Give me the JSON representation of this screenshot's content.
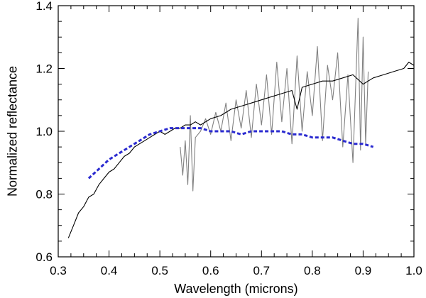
{
  "chart_data": {
    "type": "line",
    "title": "",
    "xlabel": "Wavelength (microns)",
    "ylabel": "Normalized reflectance",
    "xlim": [
      0.3,
      1.0
    ],
    "ylim": [
      0.6,
      1.4
    ],
    "x_ticks": [
      0.3,
      0.4,
      0.5,
      0.6,
      0.7,
      0.8,
      0.9,
      1.0
    ],
    "y_ticks": [
      0.6,
      0.8,
      1.0,
      1.2,
      1.4
    ],
    "x_tick_labels": [
      "0.3",
      "0.4",
      "0.5",
      "0.6",
      "0.7",
      "0.8",
      "0.9",
      "1.0"
    ],
    "y_tick_labels": [
      "0.6",
      "0.8",
      "1.0",
      "1.2",
      "1.4"
    ],
    "grid": false,
    "legend": "none",
    "series": [
      {
        "name": "gray spectrum",
        "style": "solid",
        "color": "#808080",
        "x": [
          0.54,
          0.545,
          0.55,
          0.555,
          0.56,
          0.565,
          0.57,
          0.58,
          0.59,
          0.6,
          0.61,
          0.62,
          0.63,
          0.64,
          0.65,
          0.66,
          0.67,
          0.68,
          0.69,
          0.7,
          0.71,
          0.72,
          0.73,
          0.74,
          0.75,
          0.76,
          0.77,
          0.78,
          0.79,
          0.8,
          0.81,
          0.82,
          0.83,
          0.84,
          0.85,
          0.86,
          0.87,
          0.88,
          0.89,
          0.895,
          0.9,
          0.905,
          0.91
        ],
        "y": [
          0.95,
          0.86,
          0.97,
          0.83,
          1.05,
          0.81,
          0.98,
          1.0,
          1.04,
          0.99,
          1.06,
          1.0,
          1.09,
          0.97,
          1.1,
          1.01,
          1.13,
          0.98,
          1.15,
          1.02,
          1.18,
          0.99,
          1.22,
          1.03,
          1.2,
          0.96,
          1.24,
          1.0,
          1.19,
          1.05,
          1.27,
          0.97,
          1.21,
          1.1,
          1.25,
          0.95,
          1.18,
          0.9,
          1.36,
          0.94,
          1.3,
          0.96,
          1.19
        ]
      },
      {
        "name": "black spectrum",
        "style": "solid",
        "color": "#000000",
        "x": [
          0.32,
          0.33,
          0.34,
          0.35,
          0.36,
          0.37,
          0.38,
          0.39,
          0.4,
          0.41,
          0.42,
          0.43,
          0.44,
          0.45,
          0.46,
          0.47,
          0.48,
          0.49,
          0.5,
          0.51,
          0.52,
          0.53,
          0.54,
          0.55,
          0.56,
          0.57,
          0.58,
          0.6,
          0.62,
          0.64,
          0.66,
          0.68,
          0.7,
          0.72,
          0.74,
          0.76,
          0.77,
          0.78,
          0.8,
          0.82,
          0.84,
          0.86,
          0.88,
          0.9,
          0.92,
          0.94,
          0.96,
          0.98,
          0.99,
          1.0
        ],
        "y": [
          0.66,
          0.7,
          0.74,
          0.76,
          0.79,
          0.8,
          0.83,
          0.85,
          0.87,
          0.88,
          0.9,
          0.92,
          0.93,
          0.95,
          0.96,
          0.97,
          0.98,
          0.99,
          1.0,
          0.99,
          1.0,
          1.01,
          1.01,
          1.02,
          1.02,
          1.03,
          1.02,
          1.04,
          1.05,
          1.07,
          1.08,
          1.09,
          1.1,
          1.11,
          1.12,
          1.13,
          1.07,
          1.14,
          1.15,
          1.16,
          1.16,
          1.17,
          1.18,
          1.15,
          1.17,
          1.18,
          1.19,
          1.2,
          1.22,
          1.21
        ]
      },
      {
        "name": "blue spectrum",
        "style": "dashed",
        "color": "#2a2ad0",
        "x": [
          0.36,
          0.38,
          0.4,
          0.42,
          0.44,
          0.46,
          0.48,
          0.5,
          0.52,
          0.54,
          0.56,
          0.58,
          0.6,
          0.62,
          0.64,
          0.66,
          0.68,
          0.7,
          0.72,
          0.74,
          0.76,
          0.78,
          0.8,
          0.82,
          0.84,
          0.86,
          0.88,
          0.9,
          0.92
        ],
        "y": [
          0.85,
          0.88,
          0.91,
          0.93,
          0.95,
          0.97,
          0.99,
          1.0,
          1.01,
          1.01,
          1.01,
          1.01,
          1.0,
          1.0,
          1.0,
          0.99,
          1.0,
          1.0,
          1.0,
          1.0,
          0.99,
          0.99,
          0.98,
          0.98,
          0.98,
          0.97,
          0.96,
          0.96,
          0.95
        ]
      }
    ]
  }
}
